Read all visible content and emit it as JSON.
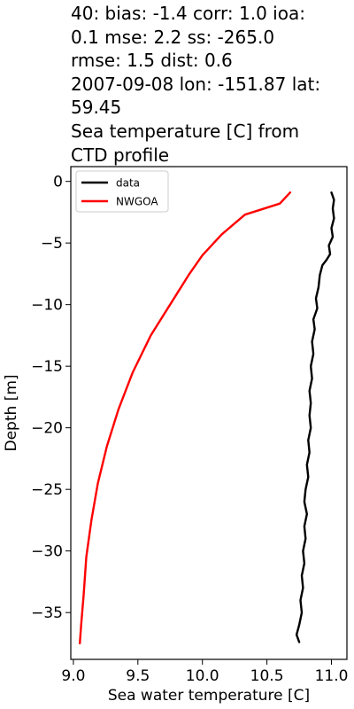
{
  "chart_data": {
    "type": "line",
    "title_lines": [
      "40: bias: -1.4  corr: 1.0  ioa:",
      "0.1  mse: 2.2  ss: -265.0",
      "rmse: 1.5  dist: 0.6",
      "2007-09-08 lon: -151.87 lat:",
      "59.45",
      "Sea temperature [C] from",
      "CTD profile"
    ],
    "xlabel": "Sea water temperature [C]",
    "ylabel": "Depth [m]",
    "xlim": [
      8.98,
      11.12
    ],
    "ylim": [
      -38.8,
      1.2
    ],
    "xticks": [
      9.0,
      9.5,
      10.0,
      10.5,
      11.0
    ],
    "xtick_labels": [
      "9.0",
      "9.5",
      "10.0",
      "10.5",
      "11.0"
    ],
    "yticks": [
      0,
      -5,
      -10,
      -15,
      -20,
      -25,
      -30,
      -35
    ],
    "ytick_labels": [
      "0",
      "−5",
      "−10",
      "−15",
      "−20",
      "−25",
      "−30",
      "−35"
    ],
    "grid": false,
    "legend_position": "top-left",
    "series": [
      {
        "name": "data",
        "color": "#000000",
        "points": [
          [
            11.0,
            -0.9
          ],
          [
            11.02,
            -1.5
          ],
          [
            11.01,
            -2.2
          ],
          [
            11.02,
            -3.0
          ],
          [
            11.0,
            -3.8
          ],
          [
            11.01,
            -4.5
          ],
          [
            10.98,
            -5.2
          ],
          [
            10.99,
            -5.9
          ],
          [
            10.96,
            -6.4
          ],
          [
            10.93,
            -6.8
          ],
          [
            10.91,
            -7.6
          ],
          [
            10.9,
            -8.6
          ],
          [
            10.88,
            -9.5
          ],
          [
            10.89,
            -10.3
          ],
          [
            10.86,
            -11.2
          ],
          [
            10.87,
            -12.0
          ],
          [
            10.85,
            -13.0
          ],
          [
            10.86,
            -14.0
          ],
          [
            10.84,
            -15.0
          ],
          [
            10.85,
            -16.0
          ],
          [
            10.83,
            -17.0
          ],
          [
            10.84,
            -18.0
          ],
          [
            10.83,
            -19.0
          ],
          [
            10.84,
            -20.0
          ],
          [
            10.82,
            -21.0
          ],
          [
            10.83,
            -22.0
          ],
          [
            10.81,
            -23.0
          ],
          [
            10.82,
            -24.0
          ],
          [
            10.8,
            -25.0
          ],
          [
            10.79,
            -26.0
          ],
          [
            10.81,
            -27.0
          ],
          [
            10.79,
            -28.0
          ],
          [
            10.8,
            -29.0
          ],
          [
            10.78,
            -30.0
          ],
          [
            10.79,
            -31.0
          ],
          [
            10.77,
            -32.0
          ],
          [
            10.78,
            -33.0
          ],
          [
            10.76,
            -34.0
          ],
          [
            10.77,
            -35.0
          ],
          [
            10.75,
            -36.0
          ],
          [
            10.73,
            -36.8
          ],
          [
            10.75,
            -37.4
          ]
        ]
      },
      {
        "name": "NWGOA",
        "color": "#ff0000",
        "points": [
          [
            10.68,
            -0.9
          ],
          [
            10.6,
            -1.8
          ],
          [
            10.33,
            -2.7
          ],
          [
            10.15,
            -4.3
          ],
          [
            10.0,
            -6.0
          ],
          [
            9.9,
            -7.5
          ],
          [
            9.78,
            -9.5
          ],
          [
            9.6,
            -12.5
          ],
          [
            9.46,
            -15.5
          ],
          [
            9.35,
            -18.5
          ],
          [
            9.26,
            -21.5
          ],
          [
            9.19,
            -24.5
          ],
          [
            9.14,
            -27.5
          ],
          [
            9.1,
            -30.5
          ],
          [
            9.08,
            -33.5
          ],
          [
            9.06,
            -36.0
          ],
          [
            9.05,
            -37.5
          ]
        ]
      }
    ]
  }
}
